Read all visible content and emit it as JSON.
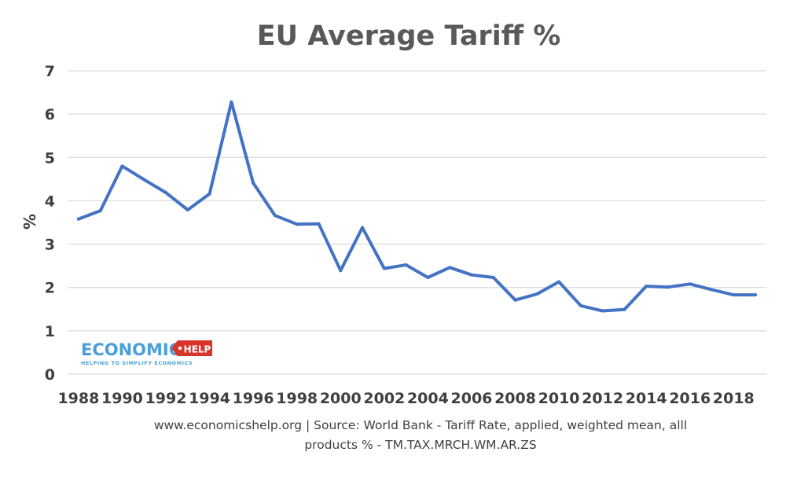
{
  "chart_data": {
    "type": "line",
    "title": "EU Average Tariff %",
    "xlabel": "",
    "ylabel": "%",
    "ylim": [
      0,
      7
    ],
    "yticks": [
      "0",
      "1",
      "2",
      "3",
      "4",
      "5",
      "6",
      "7"
    ],
    "xtick_labels": [
      "1988",
      "1990",
      "1992",
      "1994",
      "1996",
      "1998",
      "2000",
      "2002",
      "2004",
      "2006",
      "2008",
      "2010",
      "2012",
      "2014",
      "2016",
      "2018"
    ],
    "grid": true,
    "series": [
      {
        "name": "EU Average Tariff %",
        "color": "#4472c4",
        "x": [
          1988,
          1989,
          1990,
          1991,
          1992,
          1993,
          1994,
          1995,
          1996,
          1997,
          1998,
          1999,
          2000,
          2001,
          2002,
          2003,
          2004,
          2005,
          2006,
          2007,
          2008,
          2009,
          2010,
          2011,
          2012,
          2013,
          2014,
          2015,
          2016,
          2017,
          2018,
          2019
        ],
        "values": [
          3.58,
          3.77,
          4.8,
          4.49,
          4.19,
          3.79,
          4.16,
          6.28,
          4.41,
          3.66,
          3.46,
          3.47,
          2.39,
          3.38,
          2.44,
          2.52,
          2.23,
          2.46,
          2.29,
          2.23,
          1.71,
          1.85,
          2.13,
          1.58,
          1.46,
          1.49,
          2.03,
          2.01,
          2.08,
          1.95,
          1.83,
          1.83
        ]
      }
    ],
    "source_line1": "www.economicshelp.org  | Source: World Bank - Tariff Rate, applied, weighted mean, alll",
    "source_line2": "products % - TM.TAX.MRCH.WM.AR.ZS"
  },
  "logo": {
    "text_main": "ECONOMICS",
    "text_tag": "HELP",
    "tagline": "HELPING TO SIMPLIFY ECONOMICS",
    "main_color": "#4a9fd8",
    "tag_color": "#d9352b"
  }
}
